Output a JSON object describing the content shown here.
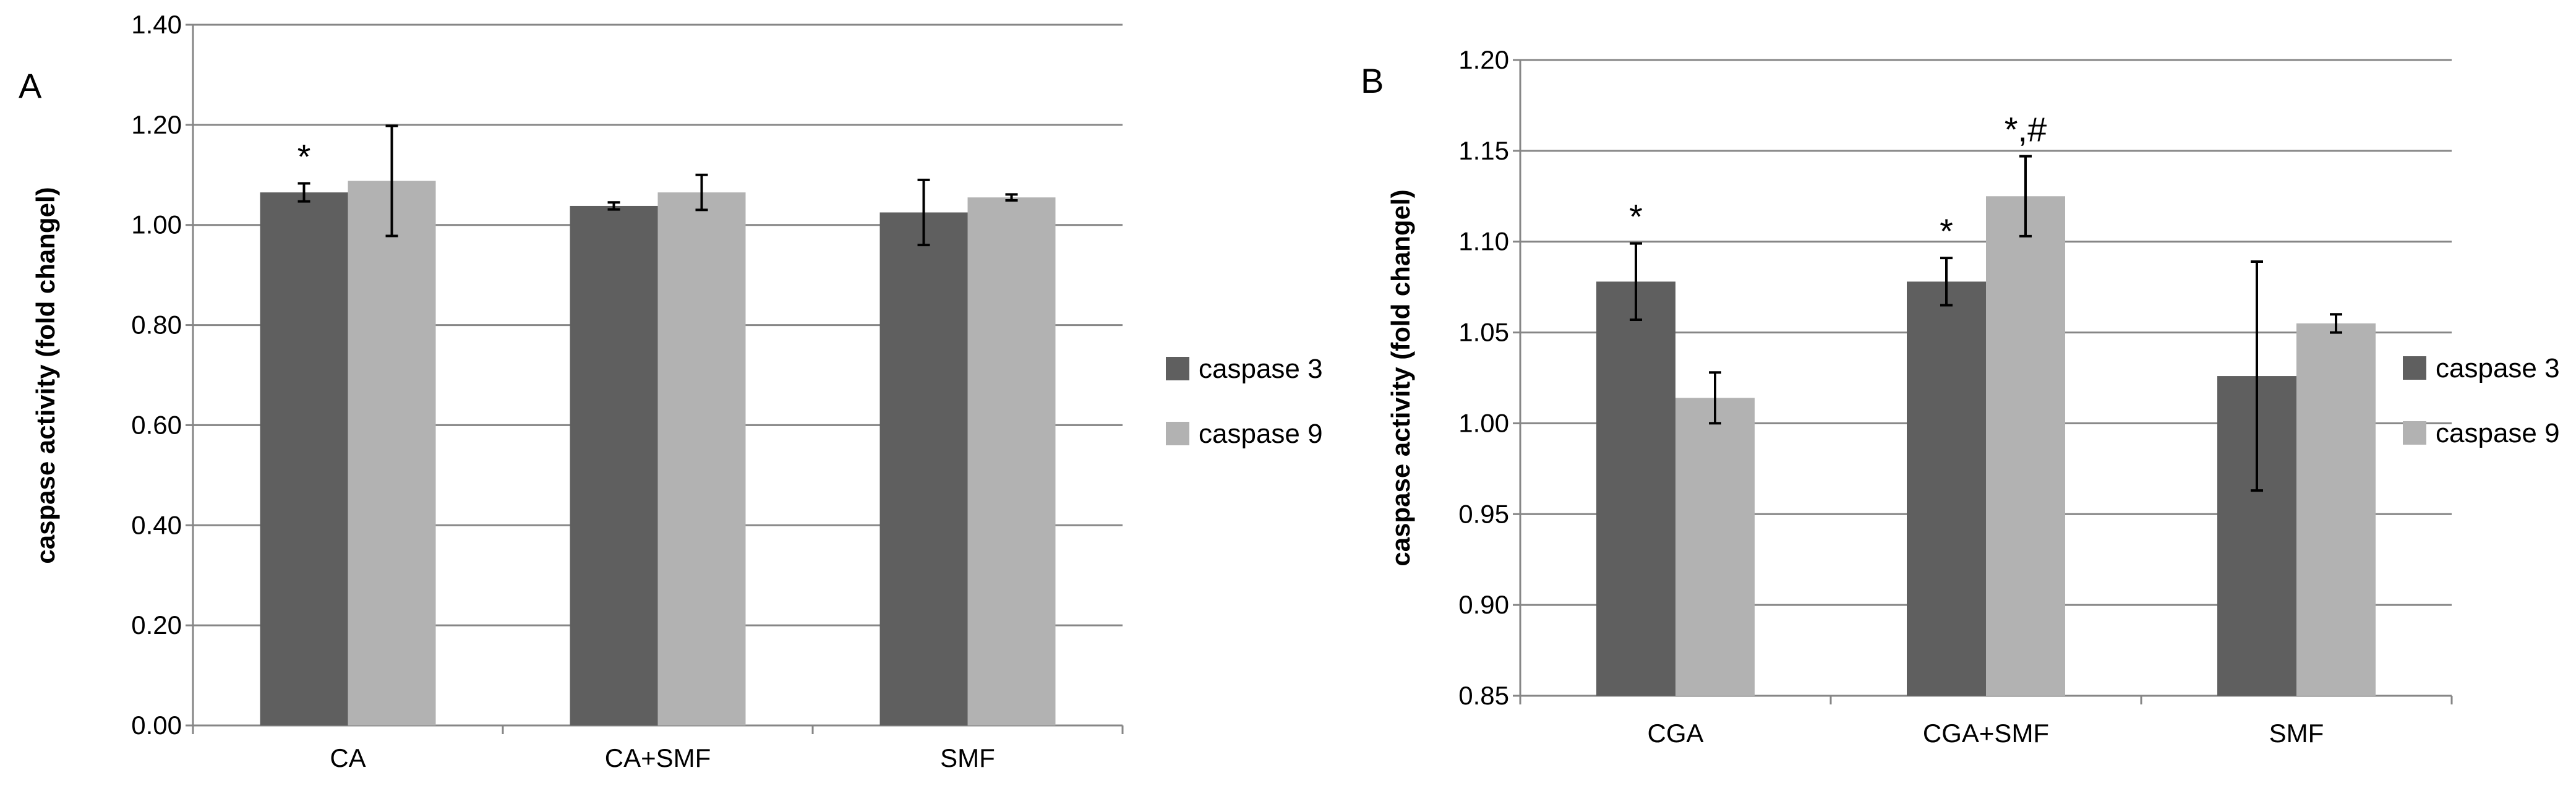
{
  "chart_data": [
    {
      "type": "bar",
      "panel_label": "A",
      "categories": [
        "CA",
        "CA+SMF",
        "SMF"
      ],
      "series": [
        {
          "name": "caspase 3",
          "color": "#5f5f5f",
          "values": [
            1.065,
            1.038,
            1.025
          ],
          "errors": [
            0.018,
            0.007,
            0.065
          ]
        },
        {
          "name": "caspase 9",
          "color": "#b2b2b2",
          "values": [
            1.088,
            1.065,
            1.055
          ],
          "errors": [
            0.11,
            0.035,
            0.006
          ]
        }
      ],
      "annotations": [
        {
          "text": "*",
          "category_index": 0,
          "series_index": 0
        }
      ],
      "ylabel": "caspase activity (fold changel)",
      "xlabel": "",
      "ylim": [
        0.0,
        1.4
      ],
      "yticks": [
        "0.00",
        "0.20",
        "0.40",
        "0.60",
        "0.80",
        "1.00",
        "1.20",
        "1.40"
      ],
      "ytick_values": [
        0.0,
        0.2,
        0.4,
        0.6,
        0.8,
        1.0,
        1.2,
        1.4
      ],
      "grid": true,
      "legend_position": "right"
    },
    {
      "type": "bar",
      "panel_label": "B",
      "categories": [
        "CGA",
        "CGA+SMF",
        "SMF"
      ],
      "series": [
        {
          "name": "caspase 3",
          "color": "#5f5f5f",
          "values": [
            1.078,
            1.078,
            1.026
          ],
          "errors": [
            0.021,
            0.013,
            0.063
          ]
        },
        {
          "name": "caspase 9",
          "color": "#b2b2b2",
          "values": [
            1.014,
            1.125,
            1.055
          ],
          "errors": [
            0.014,
            0.022,
            0.005
          ]
        }
      ],
      "annotations": [
        {
          "text": "*",
          "category_index": 0,
          "series_index": 0
        },
        {
          "text": "*",
          "category_index": 1,
          "series_index": 0
        },
        {
          "text": "*,#",
          "category_index": 1,
          "series_index": 1
        }
      ],
      "ylabel": "caspase activity (fold changel)",
      "xlabel": "",
      "ylim": [
        0.85,
        1.2
      ],
      "yticks": [
        "0.85",
        "0.90",
        "0.95",
        "1.00",
        "1.05",
        "1.10",
        "1.15",
        "1.20"
      ],
      "ytick_values": [
        0.85,
        0.9,
        0.95,
        1.0,
        1.05,
        1.1,
        1.15,
        1.2
      ],
      "grid": true,
      "legend_position": "right"
    }
  ]
}
